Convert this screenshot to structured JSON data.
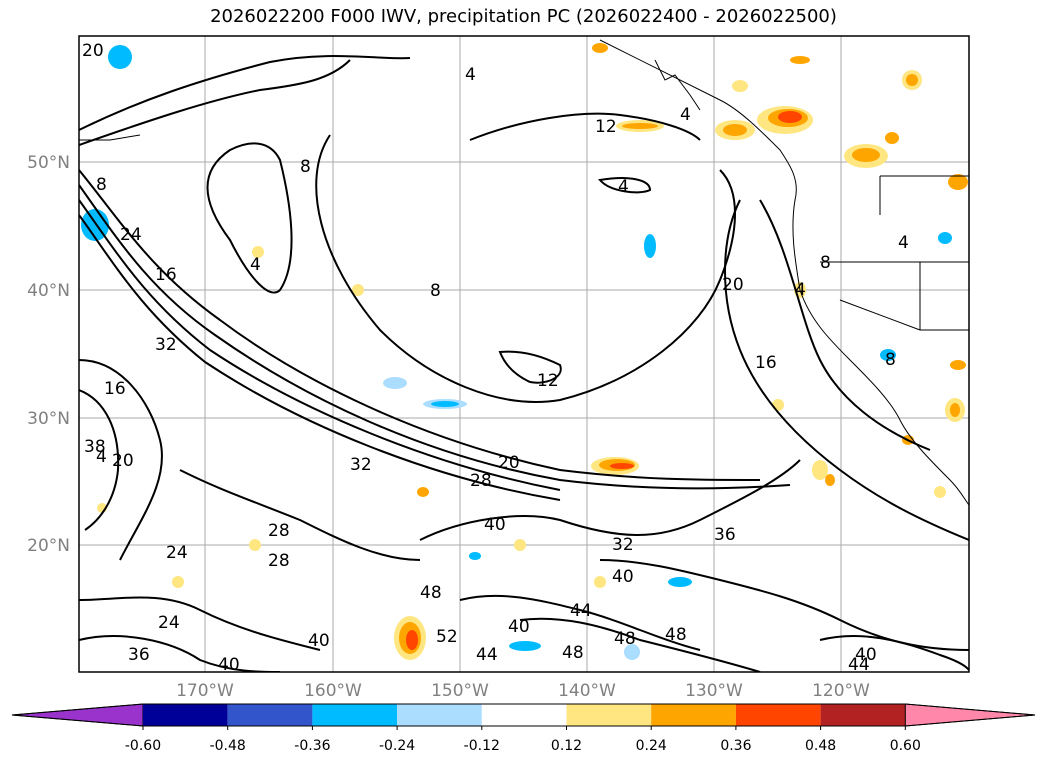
{
  "title": "2026022200 F000 IWV, precipitation PC (2026022400 - 2026022500)",
  "lat_labels": [
    "50°N",
    "40°N",
    "30°N",
    "20°N"
  ],
  "lon_labels": [
    "170°W",
    "160°W",
    "150°W",
    "140°W",
    "130°W",
    "120°W"
  ],
  "colorbar": {
    "ticks": [
      "-0.60",
      "-0.48",
      "-0.36",
      "-0.24",
      "-0.12",
      "0.12",
      "0.24",
      "0.36",
      "0.48",
      "0.60"
    ],
    "colors": {
      "under": "#9933cc",
      "bins": [
        "#000099",
        "#3355cc",
        "#00bbff",
        "#aaddff",
        "#ffffff",
        "#ffe680",
        "#ffa500",
        "#ff4500",
        "#b22222"
      ],
      "over": "#ff88aa"
    }
  },
  "contour_labels": [
    "20",
    "4",
    "4",
    "12",
    "4",
    "8",
    "4",
    "4",
    "8",
    "24",
    "16",
    "4",
    "8",
    "20",
    "8",
    "32",
    "16",
    "12",
    "16",
    "8",
    "38",
    "4",
    "20",
    "32",
    "20",
    "28",
    "40",
    "36",
    "28",
    "28",
    "24",
    "32",
    "40",
    "24",
    "48",
    "52",
    "44",
    "40",
    "44",
    "48",
    "48",
    "40",
    "36",
    "48",
    "40",
    "40",
    "44"
  ]
}
